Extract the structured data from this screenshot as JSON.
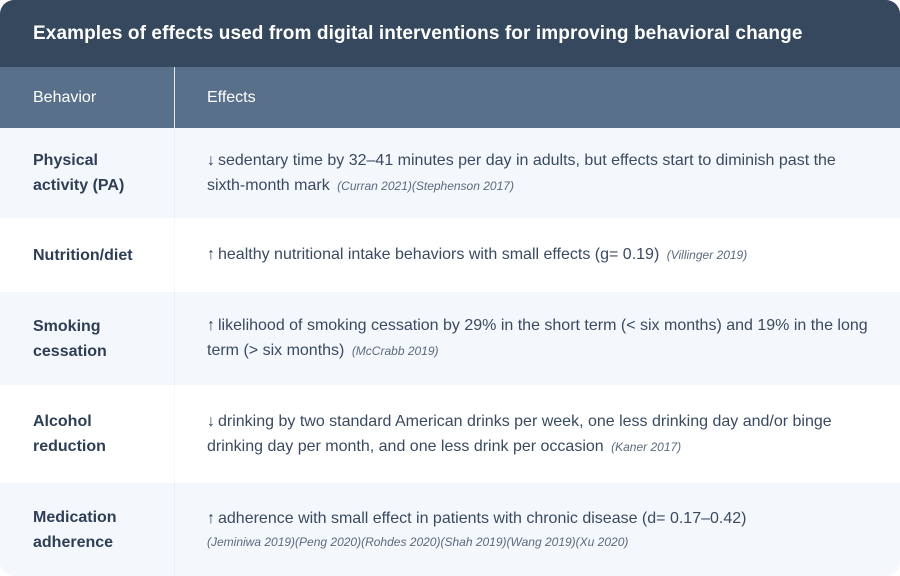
{
  "table": {
    "title": "Examples of effects used from digital interventions for improving behavioral change",
    "columns": [
      "Behavior",
      "Effects"
    ],
    "colors": {
      "title_bg": "#36485e",
      "header_bg": "#587089",
      "row_alt_bg": "#f4f7fc",
      "row_plain_bg": "#ffffff",
      "text": "#2e3f55"
    },
    "rows": [
      {
        "behavior": "Physical activity (PA)",
        "direction_icon": "arrow-down-icon",
        "arrow": "↓",
        "effect": "sedentary time by 32–41 minutes per day in adults, but effects start to diminish past the sixth-month mark",
        "citations": "(Curran 2021)(Stephenson 2017)"
      },
      {
        "behavior": "Nutrition/diet",
        "direction_icon": "arrow-up-icon",
        "arrow": "↑",
        "effect": "healthy nutritional intake behaviors with small effects (g= 0.19)",
        "citations": "(Villinger 2019)"
      },
      {
        "behavior": "Smoking cessation",
        "direction_icon": "arrow-up-icon",
        "arrow": "↑",
        "effect": "likelihood of smoking cessation by 29% in the short term (< six months) and 19% in the long term (> six months)",
        "citations": "(McCrabb 2019)"
      },
      {
        "behavior": "Alcohol reduction",
        "direction_icon": "arrow-down-icon",
        "arrow": "↓",
        "effect": "drinking by two standard American drinks per week, one less drinking day and/or binge drinking day per month, and one less drink per occasion",
        "citations": "(Kaner 2017)"
      },
      {
        "behavior": "Medication adherence",
        "direction_icon": "arrow-up-icon",
        "arrow": "↑",
        "effect": "adherence with small effect in patients with chronic disease (d= 0.17–0.42)",
        "citations": "(Jeminiwa 2019)(Peng 2020)(Rohdes 2020)(Shah 2019)(Wang 2019)(Xu 2020)"
      }
    ]
  }
}
